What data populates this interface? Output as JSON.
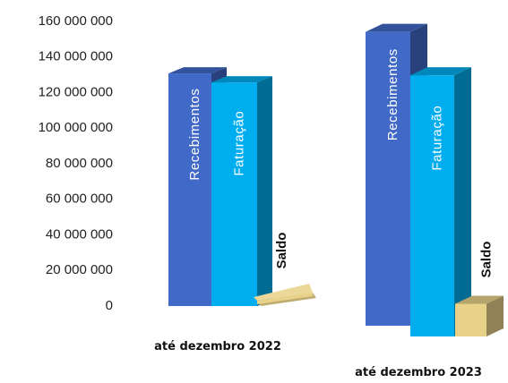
{
  "chart_data": {
    "type": "bar",
    "style": "3d-columns",
    "categories": [
      "até dezembro 2022",
      "até dezembro 2023"
    ],
    "series": [
      {
        "name": "Recebimentos",
        "values": [
          129000000,
          153000000
        ],
        "color": "#4169C8"
      },
      {
        "name": "Faturação",
        "values": [
          124000000,
          136000000
        ],
        "color": "#00AEEF"
      },
      {
        "name": "Saldo",
        "values": [
          5000000,
          17000000
        ],
        "color": "#E8D28A"
      }
    ],
    "y_ticks": [
      "160 000 000",
      "140 000 000",
      "120 000 000",
      "100 000 000",
      "80 000 000",
      "60 000 000",
      "40 000 000",
      "20 000 000",
      "0"
    ],
    "ylim": [
      0,
      160000000
    ],
    "title": "",
    "xlabel": "",
    "ylabel": "",
    "grid": false,
    "legend": "none",
    "bar_labels": "series name inside each column, rotated vertical"
  }
}
